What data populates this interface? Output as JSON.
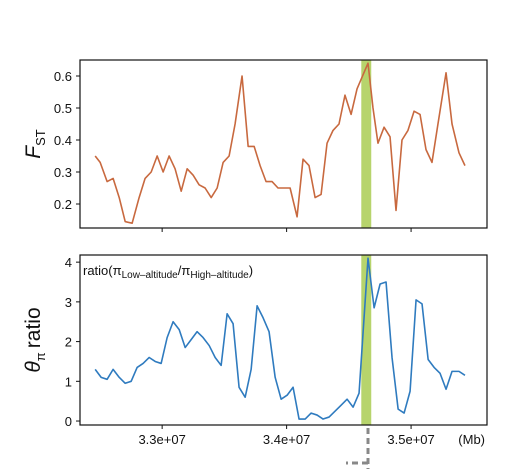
{
  "chart_data": [
    {
      "type": "line",
      "ylabel": [
        "F",
        "ST"
      ],
      "xlim": [
        32340000,
        35610000
      ],
      "ylim": [
        0.125,
        0.65
      ],
      "yticks": [
        0.2,
        0.3,
        0.4,
        0.5,
        0.6
      ],
      "highlight": [
        34600000,
        34680000
      ],
      "highlight_color": "#b7d46c",
      "series": [
        {
          "color": "#c8693f",
          "x": [
            32462000,
            32502000,
            32558000,
            32606000,
            32655000,
            32703000,
            32759000,
            32815000,
            32863000,
            32912000,
            32960000,
            33008000,
            33056000,
            33104000,
            33153000,
            33201000,
            33249000,
            33297000,
            33345000,
            33394000,
            33442000,
            33490000,
            33538000,
            33586000,
            33642000,
            33691000,
            33739000,
            33787000,
            33835000,
            33883000,
            33931000,
            33980000,
            34028000,
            34084000,
            34132000,
            34180000,
            34229000,
            34277000,
            34325000,
            34373000,
            34421000,
            34469000,
            34518000,
            34566000,
            34654000,
            34694000,
            34734000,
            34783000,
            34831000,
            34879000,
            34927000,
            34975000,
            35024000,
            35072000,
            35120000,
            35168000,
            35216000,
            35281000,
            35329000,
            35385000,
            35433000
          ],
          "values": [
            0.35,
            0.33,
            0.27,
            0.28,
            0.22,
            0.145,
            0.14,
            0.22,
            0.28,
            0.3,
            0.35,
            0.3,
            0.35,
            0.31,
            0.24,
            0.31,
            0.29,
            0.26,
            0.25,
            0.22,
            0.25,
            0.33,
            0.35,
            0.45,
            0.6,
            0.38,
            0.38,
            0.32,
            0.27,
            0.27,
            0.25,
            0.25,
            0.25,
            0.16,
            0.34,
            0.32,
            0.22,
            0.23,
            0.39,
            0.43,
            0.45,
            0.54,
            0.48,
            0.56,
            0.64,
            0.5,
            0.39,
            0.44,
            0.41,
            0.18,
            0.4,
            0.43,
            0.49,
            0.48,
            0.37,
            0.33,
            0.45,
            0.61,
            0.45,
            0.36,
            0.32
          ]
        }
      ]
    },
    {
      "type": "line",
      "ylabel": [
        "θ",
        "π",
        "ratio"
      ],
      "annotation": [
        "ratio(π",
        "Low–altitude",
        "/π",
        "High–altitude",
        ")"
      ],
      "xlabel": "(Mb)",
      "xlim": [
        32340000,
        35610000
      ],
      "ylim": [
        -0.1,
        4.18
      ],
      "xticks": [
        {
          "value": 33000000,
          "label": "3.3e+07"
        },
        {
          "value": 34000000,
          "label": "3.4e+07"
        },
        {
          "value": 35000000,
          "label": "3.5e+07"
        }
      ],
      "yticks": [
        0,
        1,
        2,
        3,
        4
      ],
      "highlight": [
        34600000,
        34680000
      ],
      "highlight_color": "#b7d46c",
      "series": [
        {
          "color": "#2f7bbf",
          "x": [
            32462000,
            32510000,
            32558000,
            32606000,
            32655000,
            32703000,
            32751000,
            32799000,
            32847000,
            32896000,
            32944000,
            32992000,
            33040000,
            33088000,
            33137000,
            33185000,
            33233000,
            33281000,
            33329000,
            33378000,
            33426000,
            33474000,
            33522000,
            33570000,
            33618000,
            33667000,
            33715000,
            33763000,
            33811000,
            33859000,
            33908000,
            33956000,
            34004000,
            34052000,
            34100000,
            34149000,
            34197000,
            34245000,
            34293000,
            34341000,
            34390000,
            34438000,
            34486000,
            34534000,
            34582000,
            34654000,
            34703000,
            34751000,
            34799000,
            34847000,
            34896000,
            34944000,
            34992000,
            35040000,
            35088000,
            35137000,
            35185000,
            35233000,
            35281000,
            35329000,
            35385000,
            35433000
          ],
          "values": [
            1.3,
            1.1,
            1.05,
            1.3,
            1.1,
            0.95,
            1.0,
            1.35,
            1.45,
            1.6,
            1.5,
            1.45,
            2.1,
            2.5,
            2.3,
            1.85,
            2.05,
            2.25,
            2.1,
            1.9,
            1.6,
            1.4,
            2.7,
            2.45,
            0.85,
            0.6,
            1.3,
            2.9,
            2.6,
            2.25,
            1.1,
            0.55,
            0.65,
            0.85,
            0.05,
            0.05,
            0.2,
            0.15,
            0.05,
            0.1,
            0.25,
            0.4,
            0.55,
            0.35,
            0.7,
            4.1,
            2.85,
            3.45,
            3.5,
            1.6,
            0.3,
            0.2,
            0.75,
            3.05,
            2.95,
            1.55,
            1.35,
            1.2,
            0.8,
            1.25,
            1.25,
            1.15
          ]
        }
      ]
    }
  ]
}
